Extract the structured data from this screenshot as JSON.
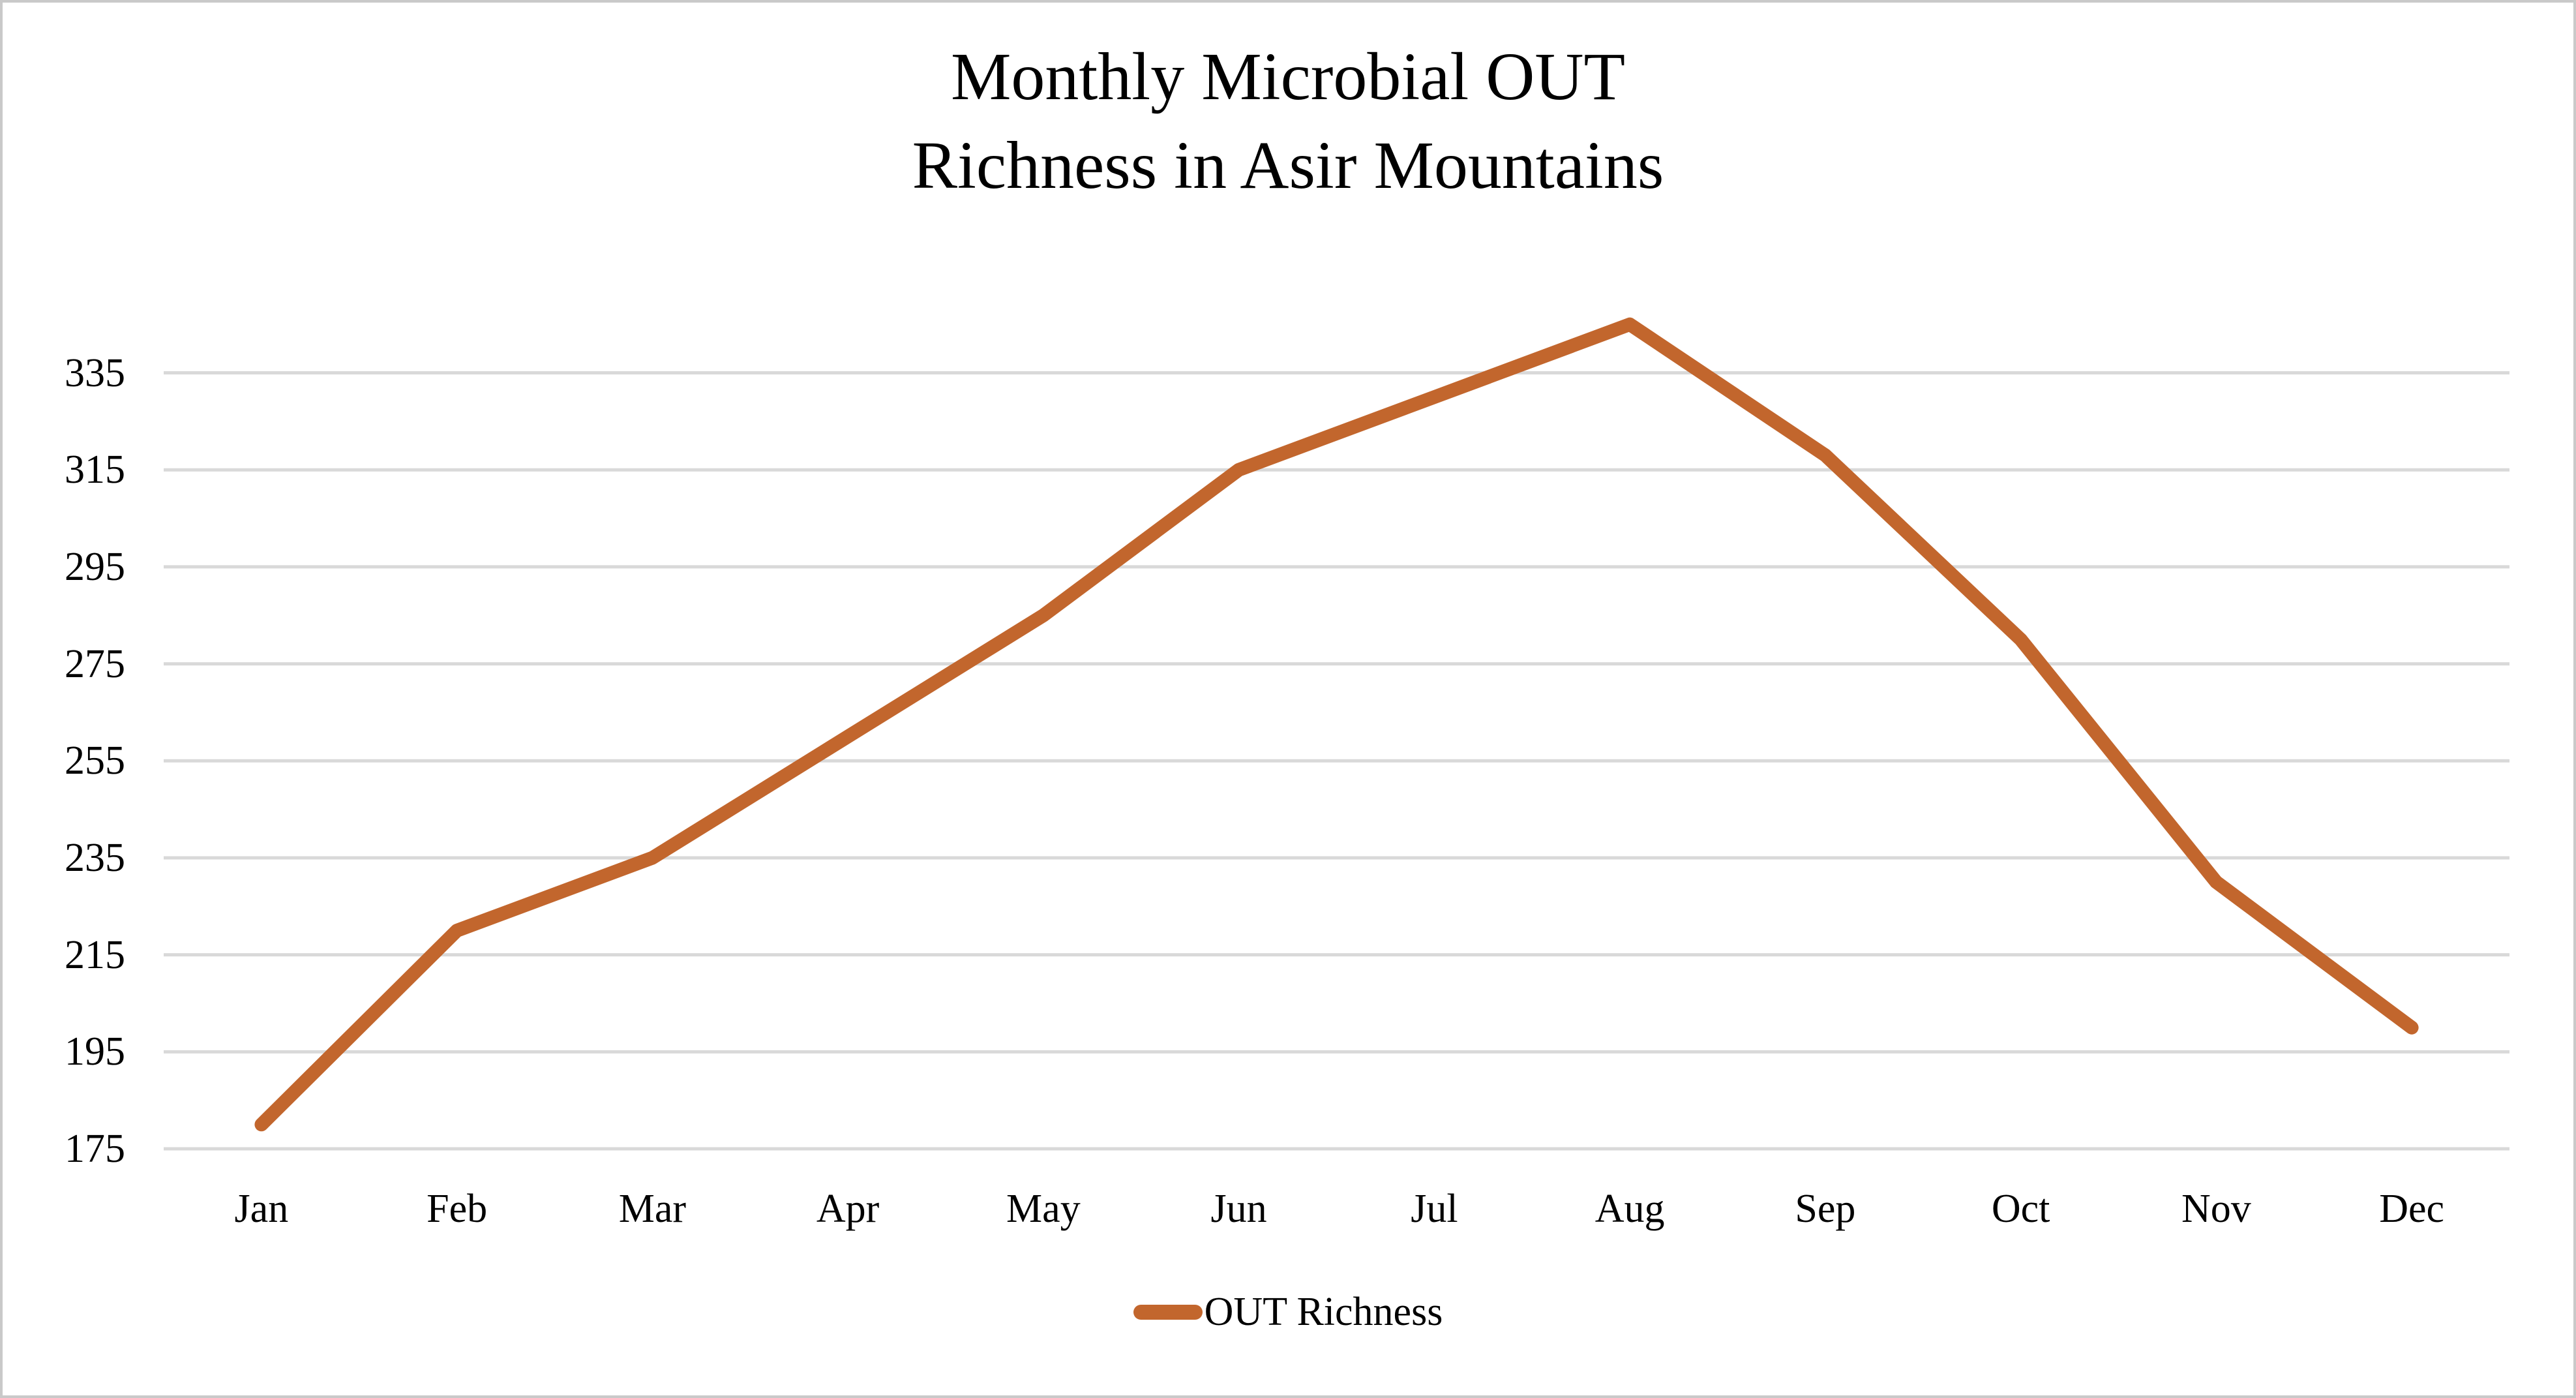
{
  "title": {
    "line1": "Monthly Microbial OUT",
    "line2": "Richness in Asir Mountains"
  },
  "legend": {
    "label": "OUT Richness"
  },
  "colors": {
    "line": "#C2662D",
    "gridline": "#D9D9D9",
    "text": "#000000",
    "border": "#C9C9C9"
  },
  "chart_data": {
    "type": "line",
    "title": "Monthly Microbial OUT Richness in Asir Mountains",
    "categories": [
      "Jan",
      "Feb",
      "Mar",
      "Apr",
      "May",
      "Jun",
      "Jul",
      "Aug",
      "Sep",
      "Oct",
      "Nov",
      "Dec"
    ],
    "series": [
      {
        "name": "OUT Richness",
        "values": [
          180,
          220,
          235,
          260,
          285,
          315,
          330,
          345,
          318,
          280,
          230,
          200
        ]
      }
    ],
    "xlabel": "",
    "ylabel": "",
    "y_axis": {
      "min": 175,
      "max": 355,
      "tick_step": 20,
      "ticks": [
        175,
        195,
        215,
        235,
        255,
        275,
        295,
        315,
        335
      ]
    },
    "ylim": [
      175,
      355
    ],
    "grid": "horizontal-only",
    "legend_position": "bottom-center",
    "line_style": "solid, round caps, no markers"
  }
}
